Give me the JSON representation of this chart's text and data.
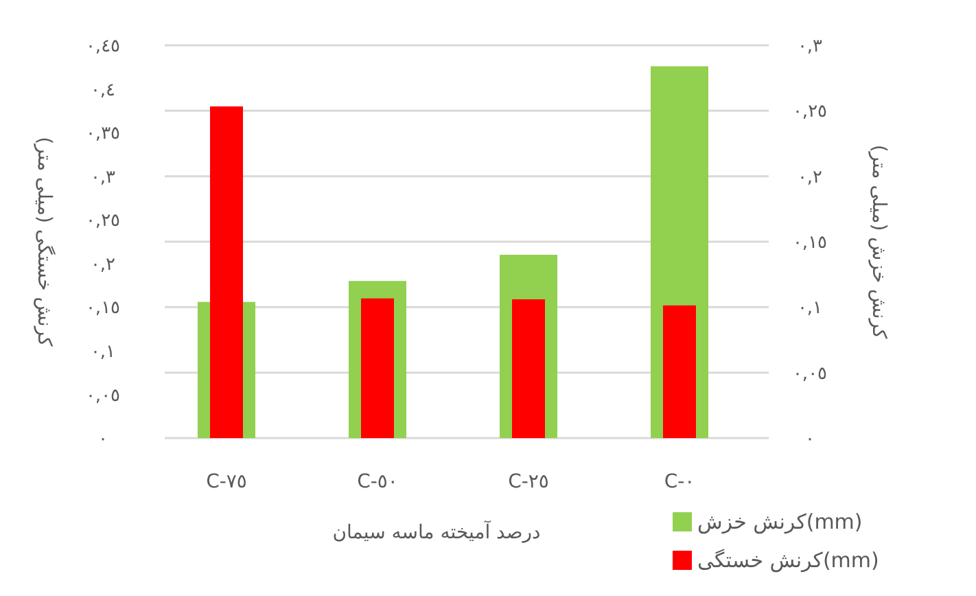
{
  "chart_data": {
    "type": "bar",
    "xlabel": "درصد آمیخته ماسه سیمان",
    "ylabel": "کرنش خستگی (میلی متر)",
    "y2label": "کرنش خزش (میلی متر)",
    "categories": [
      "C-٧٥",
      "C-٥٠",
      "C-٢٥",
      "C-٠"
    ],
    "series": [
      {
        "name": "کرنش خزش(mm)",
        "color": "#92d050",
        "axis": "y2",
        "values": [
          0.104,
          0.12,
          0.14,
          0.284
        ]
      },
      {
        "name": "کرنش خستگی(mm)",
        "color": "#ff0000",
        "values": [
          0.38,
          0.16,
          0.159,
          0.152
        ]
      }
    ],
    "ylim": [
      0,
      0.45
    ],
    "yticks": [
      {
        "value": 0,
        "label": "٠"
      },
      {
        "value": 0.05,
        "label": "٠,٠٥"
      },
      {
        "value": 0.1,
        "label": "٠,١"
      },
      {
        "value": 0.15,
        "label": "٠,١٥"
      },
      {
        "value": 0.2,
        "label": "٠,٢"
      },
      {
        "value": 0.25,
        "label": "٠,٢٥"
      },
      {
        "value": 0.3,
        "label": "٠,٣"
      },
      {
        "value": 0.35,
        "label": "٠,٣٥"
      },
      {
        "value": 0.4,
        "label": "٠,٤"
      },
      {
        "value": 0.45,
        "label": "٠,٤٥"
      }
    ],
    "y2lim": [
      0,
      0.3
    ],
    "y2ticks": [
      {
        "value": 0,
        "label": "٠"
      },
      {
        "value": 0.05,
        "label": "٠,٠٥"
      },
      {
        "value": 0.1,
        "label": "٠,١"
      },
      {
        "value": 0.15,
        "label": "٠,١٥"
      },
      {
        "value": 0.2,
        "label": "٠,٢"
      },
      {
        "value": 0.25,
        "label": "٠,٢٥"
      },
      {
        "value": 0.3,
        "label": "٠,٣"
      }
    ],
    "grid": "y2",
    "legend": "bottom right"
  }
}
